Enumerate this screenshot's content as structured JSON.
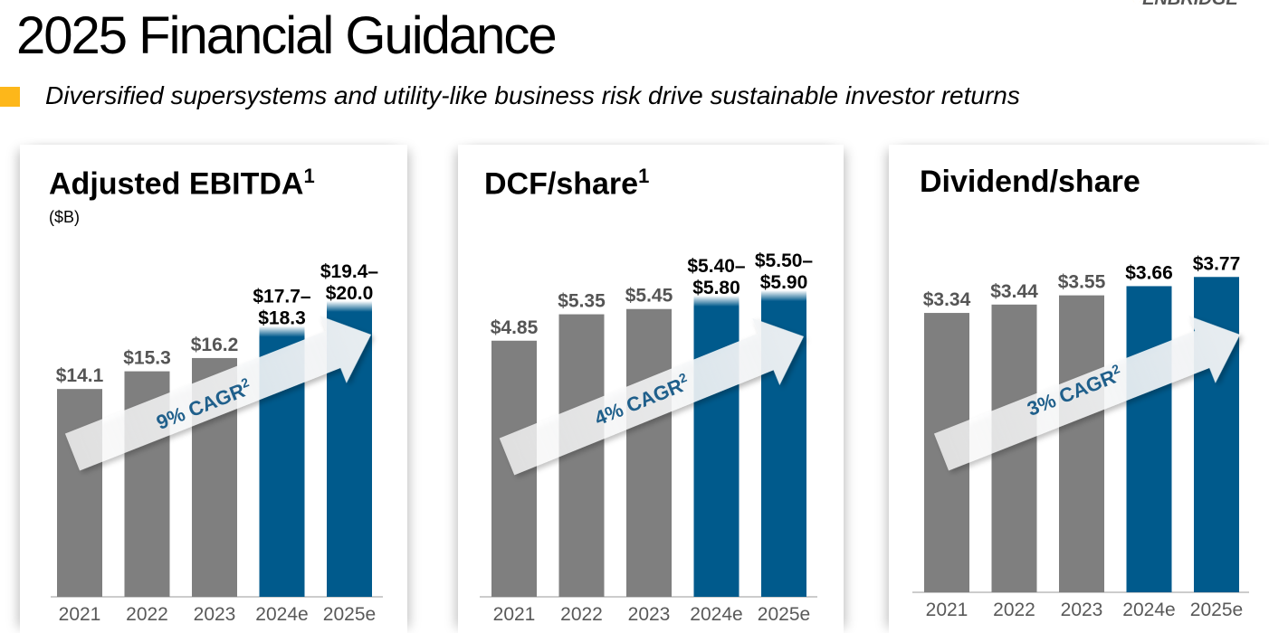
{
  "header": {
    "title": "2025 Financial Guidance",
    "subtitle": "Diversified supersystems and utility-like business risk drive sustainable investor returns",
    "logo": "ENBRIDGE"
  },
  "colors": {
    "actual": "#7f7f7f",
    "estimate": "#005a8c",
    "accent": "#fdb71a",
    "cagr_text": "#1f5f8b"
  },
  "chart_data": [
    {
      "type": "bar",
      "title": "Adjusted EBITDA",
      "title_sup": "1",
      "unit": "($B)",
      "categories": [
        "2021",
        "2022",
        "2023",
        "2024e",
        "2025e"
      ],
      "values": [
        14.1,
        15.3,
        16.2,
        [
          17.7,
          18.3
        ],
        [
          19.4,
          20.0
        ]
      ],
      "labels": [
        [
          "$14.1"
        ],
        [
          "$15.3"
        ],
        [
          "$16.2"
        ],
        [
          "$17.7–",
          "$18.3"
        ],
        [
          "$19.4–",
          "$20.0"
        ]
      ],
      "cagr": "9% CAGR",
      "cagr_sup": "2"
    },
    {
      "type": "bar",
      "title": "DCF/share",
      "title_sup": "1",
      "unit": "",
      "categories": [
        "2021",
        "2022",
        "2023",
        "2024e",
        "2025e"
      ],
      "values": [
        4.85,
        5.35,
        5.45,
        [
          5.4,
          5.8
        ],
        [
          5.5,
          5.9
        ]
      ],
      "labels": [
        [
          "$4.85"
        ],
        [
          "$5.35"
        ],
        [
          "$5.45"
        ],
        [
          "$5.40–",
          "$5.80"
        ],
        [
          "$5.50–",
          "$5.90"
        ]
      ],
      "cagr": "4% CAGR",
      "cagr_sup": "2"
    },
    {
      "type": "bar",
      "title": "Dividend/share",
      "title_sup": "",
      "unit": "",
      "categories": [
        "2021",
        "2022",
        "2023",
        "2024e",
        "2025e"
      ],
      "values": [
        3.34,
        3.44,
        3.55,
        3.66,
        3.77
      ],
      "labels": [
        [
          "$3.34"
        ],
        [
          "$3.44"
        ],
        [
          "$3.55"
        ],
        [
          "$3.66"
        ],
        [
          "$3.77"
        ]
      ],
      "cagr": "3% CAGR",
      "cagr_sup": "2"
    }
  ]
}
